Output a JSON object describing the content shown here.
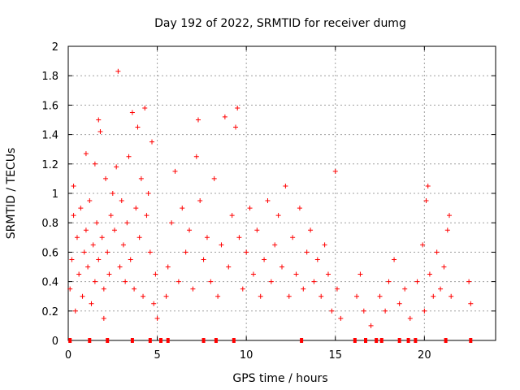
{
  "chart_data": {
    "type": "scatter",
    "title": "Day 192 of 2022, SRMTID for receiver dumg",
    "xlabel": "GPS time / hours",
    "ylabel": "SRMTID / TECUs",
    "xlim": [
      0,
      24
    ],
    "ylim": [
      0,
      2
    ],
    "xticks": [
      0,
      5,
      10,
      15,
      20
    ],
    "xtick_labels": [
      "0",
      "5",
      "10",
      "15",
      "20"
    ],
    "yticks": [
      0,
      0.2,
      0.4,
      0.6,
      0.8,
      1,
      1.2,
      1.4,
      1.6,
      1.8,
      2
    ],
    "ytick_labels": [
      "0",
      "0.2",
      "0.4",
      "0.6",
      "0.8",
      "1",
      "1.2",
      "1.4",
      "1.6",
      "1.8",
      "2"
    ],
    "grid": true,
    "marker": "+",
    "color": "#ff0000",
    "series": [
      {
        "name": "SRMTID",
        "points": [
          [
            0.1,
            0.35
          ],
          [
            0.2,
            0.55
          ],
          [
            0.3,
            0.85
          ],
          [
            0.3,
            1.05
          ],
          [
            0.4,
            0.2
          ],
          [
            0.5,
            0.7
          ],
          [
            0.6,
            0.45
          ],
          [
            0.7,
            0.9
          ],
          [
            0.8,
            0.3
          ],
          [
            0.9,
            0.6
          ],
          [
            1.0,
            1.27
          ],
          [
            1.0,
            0.75
          ],
          [
            1.1,
            0.5
          ],
          [
            1.2,
            0.95
          ],
          [
            1.3,
            0.25
          ],
          [
            1.4,
            0.65
          ],
          [
            1.5,
            1.2
          ],
          [
            1.5,
            0.4
          ],
          [
            1.6,
            0.8
          ],
          [
            1.7,
            1.5
          ],
          [
            1.7,
            0.55
          ],
          [
            1.8,
            1.42
          ],
          [
            1.9,
            0.7
          ],
          [
            2.0,
            0.15
          ],
          [
            2.0,
            0.35
          ],
          [
            2.1,
            1.1
          ],
          [
            2.2,
            0.6
          ],
          [
            2.3,
            0.45
          ],
          [
            2.4,
            0.85
          ],
          [
            2.5,
            1.0
          ],
          [
            2.6,
            0.75
          ],
          [
            2.7,
            1.18
          ],
          [
            2.8,
            1.83
          ],
          [
            2.9,
            0.5
          ],
          [
            3.0,
            0.95
          ],
          [
            3.1,
            0.65
          ],
          [
            3.2,
            0.4
          ],
          [
            3.3,
            0.8
          ],
          [
            3.4,
            1.25
          ],
          [
            3.5,
            0.55
          ],
          [
            3.6,
            1.55
          ],
          [
            3.7,
            0.35
          ],
          [
            3.8,
            0.9
          ],
          [
            3.9,
            1.45
          ],
          [
            4.0,
            0.7
          ],
          [
            4.1,
            1.1
          ],
          [
            4.2,
            0.3
          ],
          [
            4.3,
            1.58
          ],
          [
            4.4,
            0.85
          ],
          [
            4.5,
            1.0
          ],
          [
            4.6,
            0.6
          ],
          [
            4.7,
            1.35
          ],
          [
            4.8,
            0.25
          ],
          [
            4.9,
            0.45
          ],
          [
            5.0,
            0.15
          ],
          [
            5.5,
            0.3
          ],
          [
            5.6,
            0.5
          ],
          [
            5.8,
            0.8
          ],
          [
            6.0,
            1.15
          ],
          [
            6.2,
            0.4
          ],
          [
            6.4,
            0.9
          ],
          [
            6.6,
            0.6
          ],
          [
            6.8,
            0.75
          ],
          [
            7.0,
            0.35
          ],
          [
            7.2,
            1.25
          ],
          [
            7.3,
            1.5
          ],
          [
            7.4,
            0.95
          ],
          [
            7.6,
            0.55
          ],
          [
            7.8,
            0.7
          ],
          [
            8.0,
            0.4
          ],
          [
            8.2,
            1.1
          ],
          [
            8.4,
            0.3
          ],
          [
            8.6,
            0.65
          ],
          [
            8.8,
            1.52
          ],
          [
            9.0,
            0.5
          ],
          [
            9.2,
            0.85
          ],
          [
            9.4,
            1.45
          ],
          [
            9.5,
            1.58
          ],
          [
            9.6,
            0.7
          ],
          [
            9.8,
            0.35
          ],
          [
            10.0,
            0.6
          ],
          [
            10.2,
            0.9
          ],
          [
            10.4,
            0.45
          ],
          [
            10.6,
            0.75
          ],
          [
            10.8,
            0.3
          ],
          [
            11.0,
            0.55
          ],
          [
            11.2,
            0.95
          ],
          [
            11.4,
            0.4
          ],
          [
            11.6,
            0.65
          ],
          [
            11.8,
            0.85
          ],
          [
            12.0,
            0.5
          ],
          [
            12.2,
            1.05
          ],
          [
            12.4,
            0.3
          ],
          [
            12.6,
            0.7
          ],
          [
            12.8,
            0.45
          ],
          [
            13.0,
            0.9
          ],
          [
            13.2,
            0.35
          ],
          [
            13.4,
            0.6
          ],
          [
            13.6,
            0.75
          ],
          [
            13.8,
            0.4
          ],
          [
            14.0,
            0.55
          ],
          [
            14.2,
            0.3
          ],
          [
            14.4,
            0.65
          ],
          [
            14.6,
            0.45
          ],
          [
            14.8,
            0.2
          ],
          [
            15.0,
            1.15
          ],
          [
            15.1,
            0.35
          ],
          [
            15.3,
            0.15
          ],
          [
            16.2,
            0.3
          ],
          [
            16.4,
            0.45
          ],
          [
            16.6,
            0.2
          ],
          [
            17.0,
            0.1
          ],
          [
            17.5,
            0.3
          ],
          [
            17.8,
            0.2
          ],
          [
            18.0,
            0.4
          ],
          [
            18.3,
            0.55
          ],
          [
            18.6,
            0.25
          ],
          [
            18.9,
            0.35
          ],
          [
            19.2,
            0.15
          ],
          [
            19.6,
            0.4
          ],
          [
            19.9,
            0.65
          ],
          [
            20.0,
            0.2
          ],
          [
            20.1,
            0.95
          ],
          [
            20.2,
            1.05
          ],
          [
            20.3,
            0.45
          ],
          [
            20.5,
            0.3
          ],
          [
            20.7,
            0.6
          ],
          [
            20.9,
            0.35
          ],
          [
            21.1,
            0.5
          ],
          [
            21.3,
            0.75
          ],
          [
            21.4,
            0.85
          ],
          [
            21.5,
            0.3
          ],
          [
            22.5,
            0.4
          ],
          [
            22.6,
            0.25
          ]
        ]
      }
    ],
    "zero_marks_x": [
      0.1,
      1.2,
      2.2,
      3.6,
      4.6,
      5.2,
      5.6,
      7.6,
      8.3,
      9.3,
      13.1,
      16.1,
      16.7,
      17.3,
      17.6,
      18.6,
      19.1,
      19.5,
      21.2,
      22.6
    ]
  }
}
